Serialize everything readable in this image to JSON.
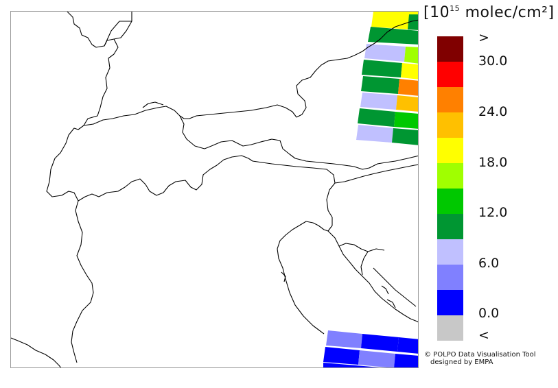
{
  "legend": {
    "unit_prefix": "[10",
    "unit_exponent": "15",
    "unit_suffix": " molec/cm²]",
    "over_label": ">",
    "under_label": "<",
    "ticks": [
      "30.0",
      "24.0",
      "18.0",
      "12.0",
      "6.0",
      "0.0"
    ],
    "colors": [
      "#800000",
      "#ff0000",
      "#ff8000",
      "#ffc000",
      "#ffff00",
      "#a0ff00",
      "#00c800",
      "#009632",
      "#c0c0ff",
      "#8080ff",
      "#0000ff",
      "#c8c8c8"
    ]
  },
  "credit": {
    "line1": "© POLPO Data Visualisation Tool",
    "line2": "designed by EMPA"
  }
}
